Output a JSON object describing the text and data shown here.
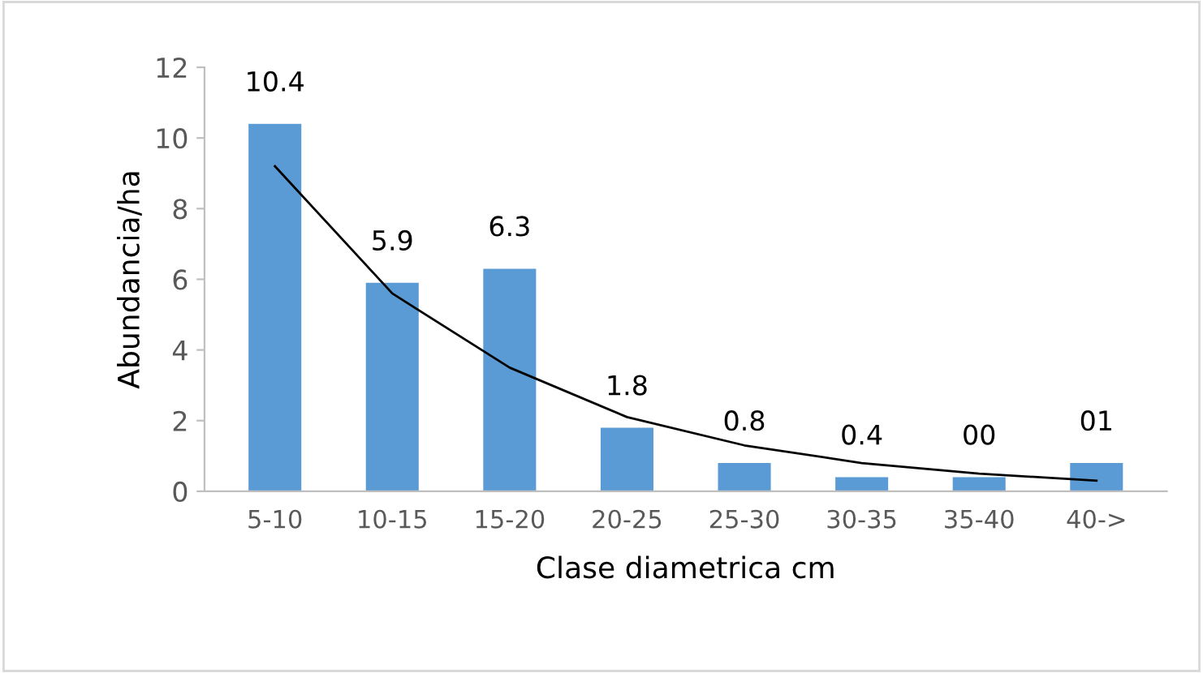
{
  "chart_data": {
    "type": "bar",
    "xlabel": "Clase diametrica cm",
    "ylabel": "Abundancia/ha",
    "categories": [
      "5-10",
      "10-15",
      "15-20",
      "20-25",
      "25-30",
      "30-35",
      "35-40",
      "40->"
    ],
    "series": [
      {
        "color": "#5b9bd5",
        "values": [
          10.4,
          5.9,
          6.3,
          1.8,
          0.8,
          0.4,
          0.4,
          0.8
        ],
        "value_labels": [
          "10.4",
          "5.9",
          "6.3",
          "1.8",
          "0.8",
          "0.4",
          "00",
          "01"
        ]
      },
      {
        "type": "line",
        "color": "#000000",
        "values": [
          9.2,
          5.6,
          3.5,
          2.1,
          1.3,
          0.8,
          0.5,
          0.3
        ]
      }
    ],
    "ylim": [
      0,
      12
    ],
    "yticks": [
      0,
      2,
      4,
      6,
      8,
      10,
      12
    ],
    "grid": false
  }
}
